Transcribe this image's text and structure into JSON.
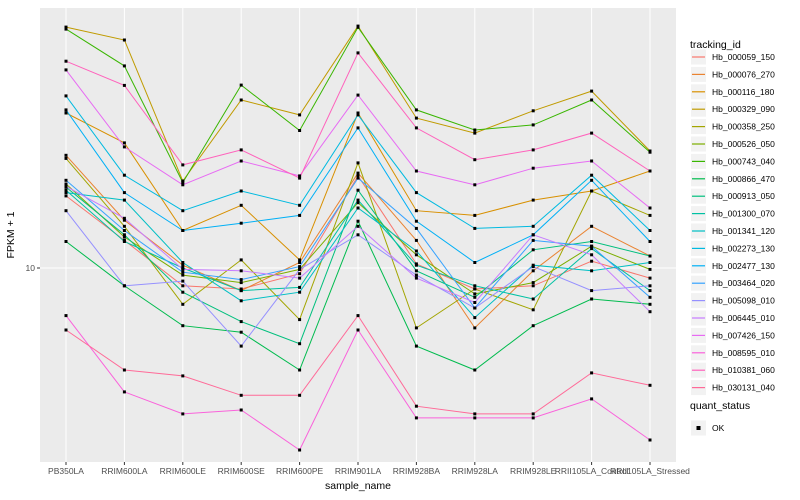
{
  "chart_data": {
    "type": "line",
    "title": "",
    "xlabel": "sample_name",
    "ylabel": "FPKM + 1",
    "y_scale": "log10",
    "y_ticks": [
      10
    ],
    "grid": true,
    "panel_bg": "#EBEBEB",
    "grid_color": "#FFFFFF",
    "point_color": "#000000",
    "point_shape": "square",
    "legend_position": "right",
    "legend": {
      "series_title": "tracking_id",
      "shape_title": "quant_status",
      "shape_label": "OK",
      "key_bg": "#F2F2F2"
    },
    "x_categories": [
      "PB350LA",
      "RRIM600LA",
      "RRIM600LE",
      "RRIM600SE",
      "RRIM600PE",
      "RRIM901LA",
      "RRIM928BA",
      "RRIM928LA",
      "RRIM928LE",
      "RRII105LA_Control",
      "RRII105LA_Stressed"
    ],
    "series": [
      {
        "name": "Hb_000059_150",
        "color": "#F8766D",
        "values": [
          16.8,
          12.2,
          8.8,
          8.6,
          9.6,
          19.4,
          10.3,
          8.6,
          8.8,
          10.5,
          9.3
        ]
      },
      {
        "name": "Hb_000076_270",
        "color": "#EA8331",
        "values": [
          22.5,
          14.1,
          10.2,
          8.5,
          10.4,
          19.8,
          12.2,
          6.5,
          9.8,
          13.5,
          10.9
        ]
      },
      {
        "name": "Hb_000116_180",
        "color": "#D89000",
        "values": [
          30.5,
          24.6,
          13.1,
          15.7,
          10.6,
          30.5,
          15.1,
          14.6,
          16.3,
          17.4,
          20.1
        ]
      },
      {
        "name": "Hb_000329_090",
        "color": "#C09B00",
        "values": [
          56.6,
          51.6,
          18.7,
          33.5,
          30.1,
          57.0,
          29.4,
          26.4,
          31.0,
          35.7,
          23.2
        ]
      },
      {
        "name": "Hb_000358_250",
        "color": "#A3A500",
        "values": [
          22.0,
          13.5,
          7.7,
          10.6,
          6.9,
          21.3,
          6.5,
          8.6,
          7.4,
          17.4,
          14.6
        ]
      },
      {
        "name": "Hb_000526_050",
        "color": "#7CAE00",
        "values": [
          18.3,
          12.5,
          9.5,
          9.0,
          9.9,
          16.0,
          11.0,
          8.3,
          9.0,
          11.7,
          9.9
        ]
      },
      {
        "name": "Hb_000743_040",
        "color": "#39B600",
        "values": [
          55.8,
          42.8,
          18.5,
          37.3,
          26.9,
          56.5,
          31.2,
          27.0,
          28.0,
          33.5,
          23.0
        ]
      },
      {
        "name": "Hb_000866_470",
        "color": "#00BB4E",
        "values": [
          12.1,
          8.8,
          6.6,
          6.3,
          4.8,
          14.0,
          5.7,
          4.8,
          6.6,
          8.0,
          7.7
        ]
      },
      {
        "name": "Hb_000913_050",
        "color": "#00BF7D",
        "values": [
          17.9,
          12.7,
          8.4,
          6.8,
          5.8,
          17.5,
          9.8,
          8.1,
          11.4,
          12.1,
          10.9
        ]
      },
      {
        "name": "Hb_001300_070",
        "color": "#00C1A3",
        "values": [
          17.5,
          12.1,
          10.0,
          8.5,
          8.7,
          16.3,
          10.2,
          8.8,
          8.0,
          11.5,
          8.5
        ]
      },
      {
        "name": "Hb_001341_120",
        "color": "#00BFC4",
        "values": [
          17.2,
          16.3,
          10.4,
          7.9,
          8.4,
          15.4,
          11.3,
          7.0,
          10.2,
          9.8,
          10.4
        ]
      },
      {
        "name": "Hb_002273_130",
        "color": "#00BAE0",
        "values": [
          34.5,
          19.5,
          15.1,
          17.4,
          15.7,
          30.1,
          17.2,
          13.3,
          13.5,
          19.5,
          13.1
        ]
      },
      {
        "name": "Hb_002477_130",
        "color": "#00B0F6",
        "values": [
          31.2,
          17.2,
          13.1,
          13.8,
          14.6,
          27.4,
          14.0,
          10.4,
          12.7,
          18.8,
          12.1
        ]
      },
      {
        "name": "Hb_003464_020",
        "color": "#35A2FF",
        "values": [
          18.8,
          13.1,
          9.7,
          9.2,
          10.1,
          19.1,
          13.3,
          7.5,
          12.2,
          11.7,
          8.1
        ]
      },
      {
        "name": "Hb_005098_010",
        "color": "#9590FF",
        "values": [
          15.1,
          8.8,
          9.1,
          5.7,
          9.9,
          12.7,
          9.5,
          7.5,
          10.1,
          8.5,
          8.8
        ]
      },
      {
        "name": "Hb_006445_010",
        "color": "#C77CFF",
        "values": [
          18.0,
          14.3,
          9.9,
          9.8,
          9.3,
          13.5,
          9.3,
          7.8,
          12.7,
          11.0,
          7.3
        ]
      },
      {
        "name": "Hb_007426_150",
        "color": "#E76BF3",
        "values": [
          41.6,
          23.9,
          18.2,
          21.6,
          19.4,
          34.7,
          20.1,
          18.2,
          20.5,
          21.6,
          15.4
        ]
      },
      {
        "name": "Hb_008595_010",
        "color": "#FA62DB",
        "values": [
          7.1,
          4.1,
          3.5,
          3.6,
          2.7,
          6.4,
          3.4,
          3.4,
          3.4,
          3.9,
          2.9
        ]
      },
      {
        "name": "Hb_010381_060",
        "color": "#FF62BC",
        "values": [
          44.3,
          37.2,
          21.0,
          23.4,
          19.1,
          47.0,
          27.4,
          21.8,
          23.4,
          26.4,
          20.1
        ]
      },
      {
        "name": "Hb_030131_040",
        "color": "#FF6A98",
        "values": [
          6.4,
          4.8,
          4.6,
          4.0,
          4.0,
          7.1,
          3.7,
          3.5,
          3.5,
          4.7,
          4.3
        ]
      }
    ]
  }
}
